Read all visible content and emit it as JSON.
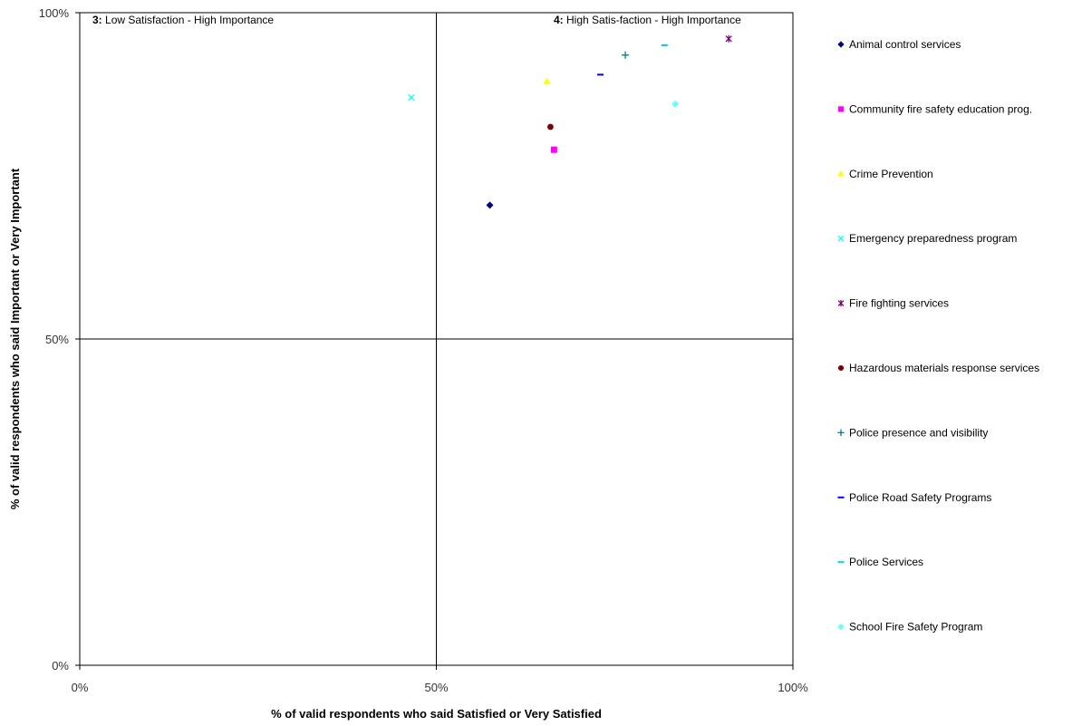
{
  "chart_data": {
    "type": "scatter",
    "xlabel": "% of valid respondents who said Satisfied or Very Satisfied",
    "ylabel": "% of valid respondents who said Important or Very Important",
    "xlim": [
      0,
      100
    ],
    "ylim": [
      0,
      100
    ],
    "xticks": [
      "0%",
      "50%",
      "100%"
    ],
    "yticks": [
      "0%",
      "50%",
      "100%"
    ],
    "quadrant_lines": {
      "x": 50,
      "y": 50
    },
    "quadrants": [
      {
        "number": "3:",
        "text": "Low Satisfaction - High Importance"
      },
      {
        "number": "4:",
        "text": "High Satis-faction - High Importance"
      }
    ],
    "legend_position": "right",
    "series": [
      {
        "name": "Animal control services",
        "marker": "diamond",
        "color": "#000080",
        "x": 57.5,
        "y": 70.5
      },
      {
        "name": "Community fire safety education prog.",
        "marker": "square",
        "color": "#ff00ff",
        "x": 66.5,
        "y": 79
      },
      {
        "name": "Crime Prevention",
        "marker": "triangle",
        "color": "#ffff00",
        "x": 65.5,
        "y": 89.5
      },
      {
        "name": "Emergency preparedness program",
        "marker": "x",
        "color": "#00ffff",
        "x": 46.5,
        "y": 87
      },
      {
        "name": "Fire fighting services",
        "marker": "star",
        "color": "#800080",
        "x": 91,
        "y": 96
      },
      {
        "name": "Hazardous materials response services",
        "marker": "circle",
        "color": "#800000",
        "x": 66,
        "y": 82.5
      },
      {
        "name": "Police presence and visibility",
        "marker": "plus",
        "color": "#008080",
        "x": 76.5,
        "y": 93.5
      },
      {
        "name": "Police Road Safety Programs",
        "marker": "dash",
        "color": "#0000ff",
        "x": 73,
        "y": 90.5
      },
      {
        "name": "Police Services",
        "marker": "dash",
        "color": "#00ccff",
        "x": 82,
        "y": 95
      },
      {
        "name": "School Fire Safety Program",
        "marker": "diamond",
        "color": "#66ffff",
        "x": 83.5,
        "y": 86
      }
    ]
  }
}
